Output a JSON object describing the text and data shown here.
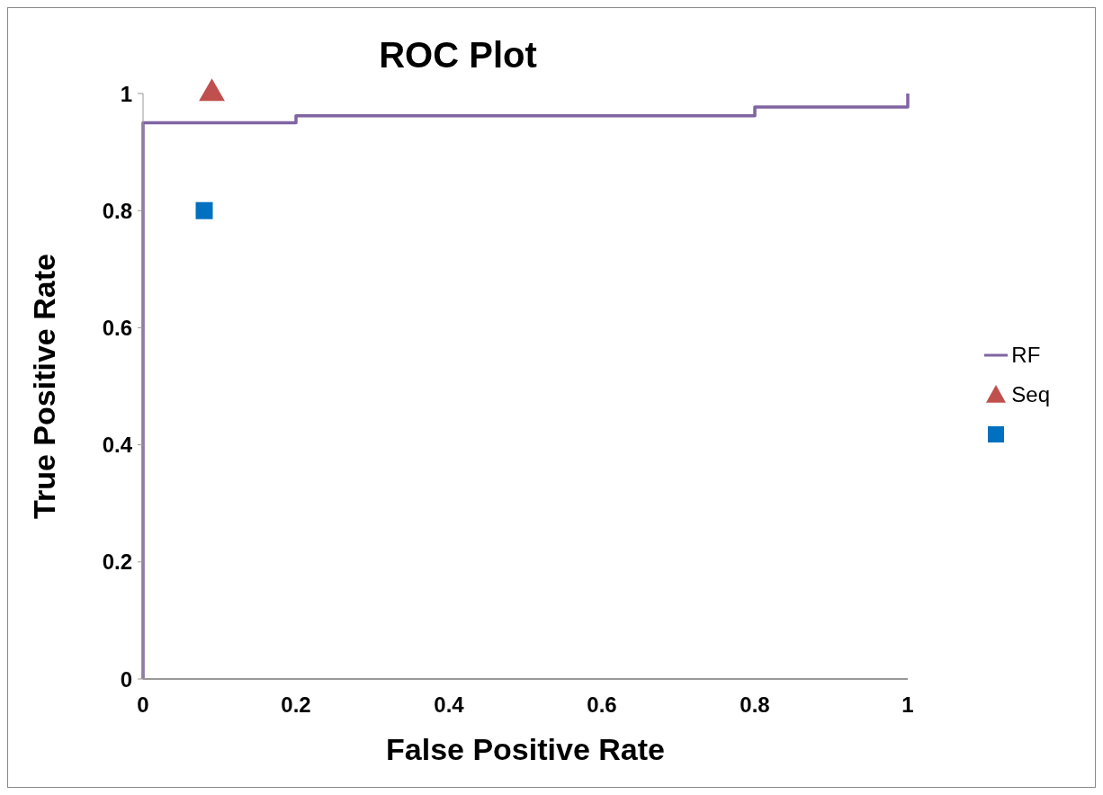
{
  "chart_data": {
    "type": "step",
    "title": "ROC Plot",
    "xlabel": "False Positive Rate",
    "ylabel": "True Positive Rate",
    "xlim": [
      0,
      1
    ],
    "ylim": [
      0,
      1
    ],
    "xticks": [
      0,
      0.2,
      0.4,
      0.6,
      0.8,
      1
    ],
    "yticks": [
      0,
      0.2,
      0.4,
      0.6,
      0.8,
      1
    ],
    "grid": false,
    "legend": "right",
    "series": [
      {
        "name": "RF",
        "color": "#8064a2",
        "marker": "none",
        "x": [
          0,
          0,
          0.2,
          0.8,
          1
        ],
        "values": [
          0,
          0.95,
          0.962,
          0.977,
          1
        ]
      },
      {
        "name": "Seq",
        "type": "scatter",
        "color": "#c0504d",
        "marker": "triangle",
        "x": [
          0.09
        ],
        "values": [
          1
        ]
      },
      {
        "type": "scatter",
        "color": "#0070c0",
        "marker": "square",
        "x": [
          0.08
        ],
        "values": [
          0.8
        ]
      }
    ]
  }
}
